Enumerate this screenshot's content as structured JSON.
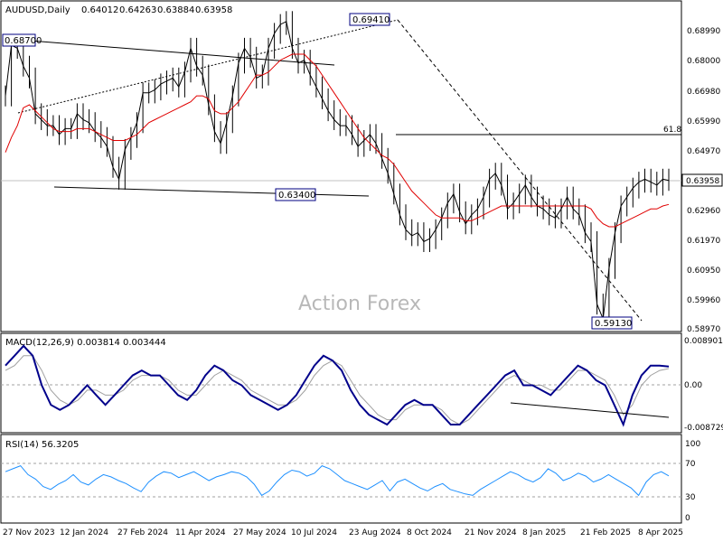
{
  "chart_data": {
    "type": "candlestick",
    "symbol": "AUDUSD,Daily",
    "ohlc": {
      "open": "0.64012",
      "high": "0.64263",
      "low": "0.63884",
      "close": "0.63958"
    },
    "watermark": "Action Forex",
    "price_axis": {
      "ticks": [
        "0.68990",
        "0.68000",
        "0.66980",
        "0.65990",
        "0.64970",
        "0.62960",
        "0.61970",
        "0.60950",
        "0.59960",
        "0.58970"
      ],
      "current_label": "0.63958"
    },
    "time_axis": [
      "27 Nov 2023",
      "12 Jan 2024",
      "27 Feb 2024",
      "11 Apr 2024",
      "27 May 2024",
      "10 Jul 2024",
      "23 Aug 2024",
      "8 Oct 2024",
      "21 Nov 2024",
      "8 Jan 2025",
      "21 Feb 2025",
      "8 Apr 2025"
    ],
    "annotations": {
      "p1": "0.68700",
      "p2": "0.69410",
      "p3": "0.63400",
      "p4": "0.59130",
      "fib": "61.8"
    },
    "price_path": [
      0.668,
      0.685,
      0.684,
      0.678,
      0.674,
      0.662,
      0.66,
      0.658,
      0.658,
      0.655,
      0.657,
      0.657,
      0.662,
      0.66,
      0.659,
      0.656,
      0.654,
      0.651,
      0.644,
      0.64,
      0.65,
      0.654,
      0.659,
      0.669,
      0.669,
      0.67,
      0.672,
      0.673,
      0.674,
      0.671,
      0.676,
      0.684,
      0.678,
      0.675,
      0.665,
      0.656,
      0.652,
      0.659,
      0.668,
      0.679,
      0.684,
      0.681,
      0.674,
      0.675,
      0.684,
      0.689,
      0.692,
      0.693,
      0.684,
      0.679,
      0.68,
      0.675,
      0.671,
      0.667,
      0.663,
      0.66,
      0.658,
      0.658,
      0.655,
      0.651,
      0.653,
      0.655,
      0.652,
      0.647,
      0.642,
      0.635,
      0.628,
      0.623,
      0.621,
      0.622,
      0.619,
      0.62,
      0.623,
      0.627,
      0.632,
      0.635,
      0.629,
      0.625,
      0.628,
      0.63,
      0.634,
      0.64,
      0.642,
      0.638,
      0.63,
      0.632,
      0.635,
      0.638,
      0.634,
      0.631,
      0.63,
      0.628,
      0.627,
      0.63,
      0.634,
      0.63,
      0.628,
      0.622,
      0.619,
      0.598,
      0.593,
      0.61,
      0.622,
      0.631,
      0.634,
      0.637,
      0.639,
      0.64,
      0.639,
      0.638,
      0.64,
      0.6396
    ],
    "ma_path": [
      0.649,
      0.654,
      0.658,
      0.664,
      0.665,
      0.663,
      0.661,
      0.659,
      0.657,
      0.656,
      0.656,
      0.656,
      0.657,
      0.657,
      0.657,
      0.656,
      0.655,
      0.654,
      0.653,
      0.653,
      0.653,
      0.654,
      0.655,
      0.657,
      0.659,
      0.66,
      0.661,
      0.662,
      0.663,
      0.664,
      0.665,
      0.666,
      0.668,
      0.668,
      0.667,
      0.663,
      0.662,
      0.662,
      0.664,
      0.666,
      0.669,
      0.672,
      0.675,
      0.675,
      0.676,
      0.678,
      0.68,
      0.681,
      0.682,
      0.682,
      0.682,
      0.68,
      0.678,
      0.675,
      0.672,
      0.669,
      0.666,
      0.663,
      0.66,
      0.657,
      0.654,
      0.652,
      0.65,
      0.648,
      0.647,
      0.645,
      0.642,
      0.639,
      0.636,
      0.634,
      0.632,
      0.63,
      0.628,
      0.627,
      0.627,
      0.627,
      0.627,
      0.626,
      0.626,
      0.627,
      0.628,
      0.629,
      0.63,
      0.631,
      0.631,
      0.631,
      0.631,
      0.631,
      0.631,
      0.631,
      0.631,
      0.631,
      0.631,
      0.631,
      0.631,
      0.631,
      0.631,
      0.631,
      0.63,
      0.627,
      0.625,
      0.624,
      0.624,
      0.625,
      0.626,
      0.627,
      0.628,
      0.629,
      0.63,
      0.63,
      0.631,
      0.6315
    ],
    "macd": {
      "label": "MACD(12,26,9) 0.003814 0.003444",
      "ticks": [
        "0.008901",
        "0.00",
        "-0.008729"
      ],
      "path": [
        0.004,
        0.006,
        0.008,
        0.006,
        0.0,
        -0.004,
        -0.005,
        -0.004,
        -0.002,
        0.0,
        -0.002,
        -0.004,
        -0.002,
        0.0,
        0.002,
        0.003,
        0.002,
        0.002,
        0.0,
        -0.002,
        -0.003,
        -0.001,
        0.002,
        0.004,
        0.003,
        0.001,
        0.0,
        -0.002,
        -0.003,
        -0.004,
        -0.005,
        -0.004,
        -0.002,
        0.001,
        0.004,
        0.006,
        0.005,
        0.003,
        -0.001,
        -0.004,
        -0.006,
        -0.007,
        -0.008,
        -0.006,
        -0.004,
        -0.003,
        -0.004,
        -0.004,
        -0.006,
        -0.008,
        -0.008,
        -0.006,
        -0.004,
        -0.002,
        0.0,
        0.002,
        0.003,
        0.0,
        0.0,
        -0.001,
        -0.002,
        0.0,
        0.002,
        0.004,
        0.003,
        0.001,
        0.0,
        -0.004,
        -0.008,
        -0.002,
        0.002,
        0.004,
        0.004,
        0.0038
      ],
      "signal": [
        0.003,
        0.004,
        0.006,
        0.006,
        0.003,
        -0.001,
        -0.003,
        -0.004,
        -0.003,
        -0.001,
        -0.001,
        -0.002,
        -0.002,
        -0.001,
        0.001,
        0.002,
        0.002,
        0.002,
        0.001,
        -0.001,
        -0.002,
        -0.002,
        0.0,
        0.002,
        0.003,
        0.002,
        0.001,
        -0.001,
        -0.002,
        -0.003,
        -0.004,
        -0.004,
        -0.003,
        -0.001,
        0.002,
        0.004,
        0.005,
        0.004,
        0.001,
        -0.002,
        -0.004,
        -0.006,
        -0.007,
        -0.007,
        -0.005,
        -0.004,
        -0.004,
        -0.004,
        -0.005,
        -0.007,
        -0.008,
        -0.007,
        -0.005,
        -0.003,
        -0.001,
        0.001,
        0.002,
        0.001,
        0.0,
        0.0,
        -0.001,
        -0.001,
        0.001,
        0.003,
        0.003,
        0.002,
        0.001,
        -0.002,
        -0.006,
        -0.004,
        0.0,
        0.002,
        0.003,
        0.0034
      ]
    },
    "rsi": {
      "label": "RSI(14) 56.3205",
      "ticks": [
        "100",
        "70",
        "30",
        "0"
      ],
      "path": [
        62,
        66,
        70,
        58,
        52,
        42,
        38,
        45,
        50,
        58,
        48,
        44,
        52,
        58,
        55,
        50,
        46,
        40,
        35,
        48,
        56,
        62,
        60,
        54,
        58,
        62,
        56,
        50,
        55,
        58,
        62,
        60,
        55,
        45,
        30,
        36,
        48,
        58,
        64,
        62,
        56,
        60,
        70,
        66,
        58,
        50,
        46,
        42,
        38,
        44,
        50,
        36,
        48,
        52,
        46,
        40,
        36,
        42,
        46,
        38,
        35,
        32,
        30,
        38,
        44,
        50,
        56,
        62,
        58,
        52,
        48,
        54,
        66,
        60,
        50,
        54,
        60,
        56,
        48,
        52,
        58,
        52,
        46,
        40,
        30,
        48,
        58,
        62,
        56.32
      ]
    }
  }
}
